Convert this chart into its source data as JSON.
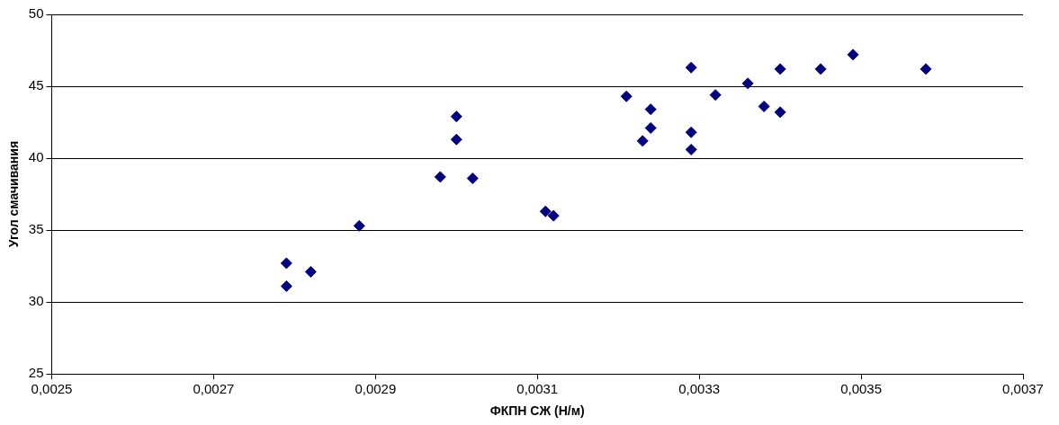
{
  "chart_data": {
    "type": "scatter",
    "xlabel": "ФКПН СЖ (Н/м)",
    "ylabel": "Угол смачивания",
    "marker": "diamond",
    "grid": "y",
    "legend": false,
    "x": [
      0.00279,
      0.00279,
      0.00282,
      0.00288,
      0.00298,
      0.003,
      0.003,
      0.00302,
      0.00311,
      0.00312,
      0.00321,
      0.00323,
      0.00324,
      0.00324,
      0.00329,
      0.00329,
      0.00329,
      0.00332,
      0.00336,
      0.00338,
      0.0034,
      0.0034,
      0.00345,
      0.00349,
      0.00358
    ],
    "series": [
      {
        "color": "#000080",
        "values": [
          32.7,
          31.1,
          32.1,
          35.3,
          38.7,
          42.9,
          41.3,
          38.6,
          36.3,
          36.0,
          44.3,
          41.2,
          43.4,
          42.1,
          46.3,
          41.8,
          40.6,
          44.4,
          45.2,
          43.6,
          46.2,
          43.2,
          46.2,
          47.2,
          46.2
        ]
      }
    ],
    "xlim": [
      0.0025,
      0.0037
    ],
    "xticks": [
      {
        "value": 0.0025,
        "label": "0,0025"
      },
      {
        "value": 0.0027,
        "label": "0,0027"
      },
      {
        "value": 0.0029,
        "label": "0,0029"
      },
      {
        "value": 0.0031,
        "label": "0,0031"
      },
      {
        "value": 0.0033,
        "label": "0,0033"
      },
      {
        "value": 0.0035,
        "label": "0,0035"
      },
      {
        "value": 0.0037,
        "label": "0,0037"
      }
    ],
    "ylim": [
      25,
      50
    ],
    "yticks": [
      25,
      30,
      35,
      40,
      45,
      50
    ]
  }
}
